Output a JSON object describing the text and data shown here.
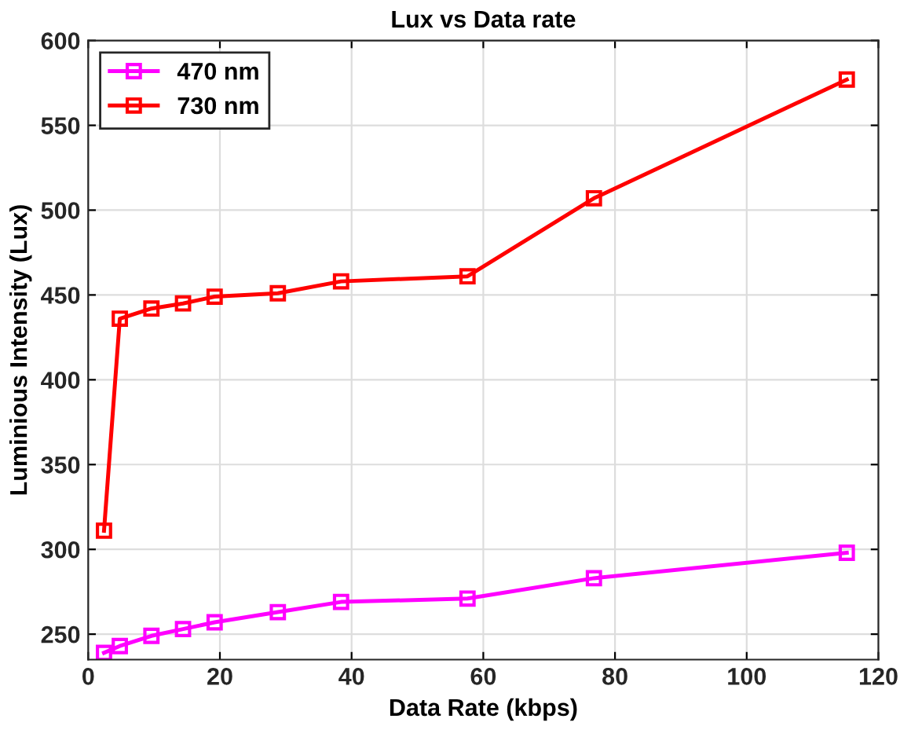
{
  "chart_data": {
    "type": "line",
    "title": "Lux vs Data rate",
    "xlabel": "Data Rate (kbps)",
    "ylabel": "Luminious Intensity (Lux)",
    "x": [
      2.4,
      4.8,
      9.6,
      14.4,
      19.2,
      28.8,
      38.4,
      57.6,
      76.8,
      115.2
    ],
    "series": [
      {
        "name": "470 nm",
        "color": "#ff00ff",
        "values": [
          239,
          243,
          249,
          253,
          257,
          263,
          269,
          271,
          283,
          298
        ]
      },
      {
        "name": "730 nm",
        "color": "#ff0000",
        "values": [
          311,
          436,
          442,
          445,
          449,
          451,
          458,
          461,
          507,
          577
        ]
      }
    ],
    "xlim": [
      0,
      120
    ],
    "xticks": [
      0,
      20,
      40,
      60,
      80,
      100,
      120
    ],
    "ylim": [
      235,
      600
    ],
    "yticks": [
      250,
      300,
      350,
      400,
      450,
      500,
      550,
      600
    ],
    "grid": true,
    "legend": "top left",
    "marker": "square",
    "line_style": "solid"
  }
}
